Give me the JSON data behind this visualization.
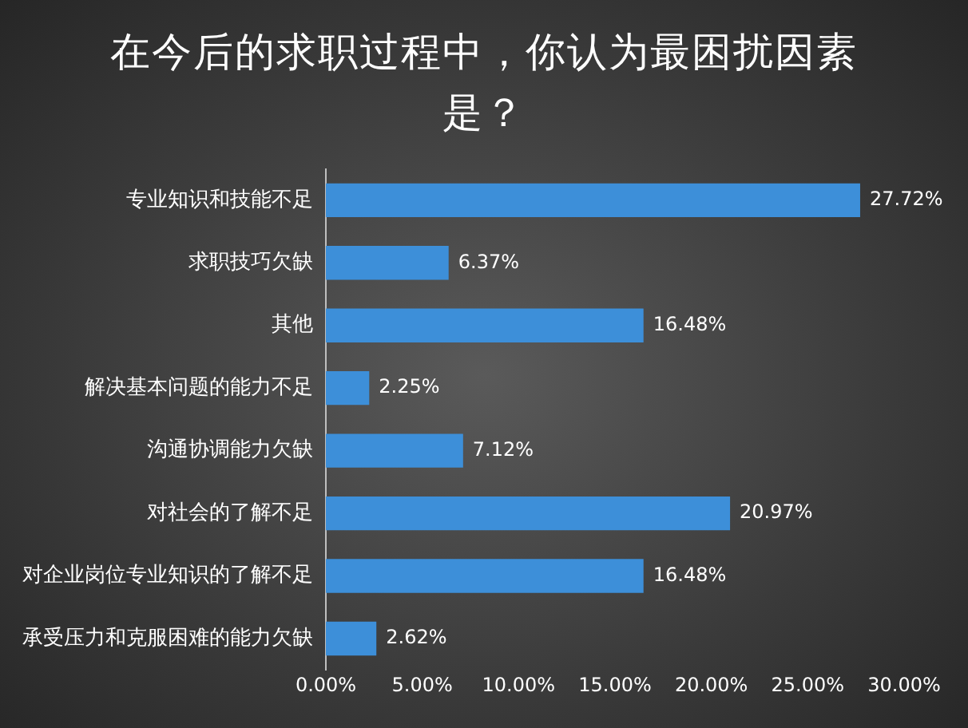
{
  "chart_data": {
    "type": "bar",
    "orientation": "horizontal",
    "title": "在今后的求职过程中，你认为最困扰因素是？",
    "categories": [
      "专业知识和技能不足",
      "求职技巧欠缺",
      "其他",
      "解决基本问题的能力不足",
      "沟通协调能力欠缺",
      "对社会的了解不足",
      "对企业岗位专业知识的了解不足",
      "承受压力和克服困难的能力欠缺"
    ],
    "values": [
      27.72,
      6.37,
      16.48,
      2.25,
      7.12,
      20.97,
      16.48,
      2.62
    ],
    "value_labels": [
      "27.72%",
      "6.37%",
      "16.48%",
      "2.25%",
      "7.12%",
      "20.97%",
      "16.48%",
      "2.62%"
    ],
    "color": "#3d8fd9",
    "xlim": [
      0,
      30
    ],
    "xticks": [
      {
        "value": 0,
        "label": "0.00%"
      },
      {
        "value": 5,
        "label": "5.00%"
      },
      {
        "value": 10,
        "label": "10.00%"
      },
      {
        "value": 15,
        "label": "15.00%"
      },
      {
        "value": 20,
        "label": "20.00%"
      },
      {
        "value": 25,
        "label": "25.00%"
      },
      {
        "value": 30,
        "label": "30.00%"
      }
    ],
    "grid": false,
    "legend": false
  }
}
